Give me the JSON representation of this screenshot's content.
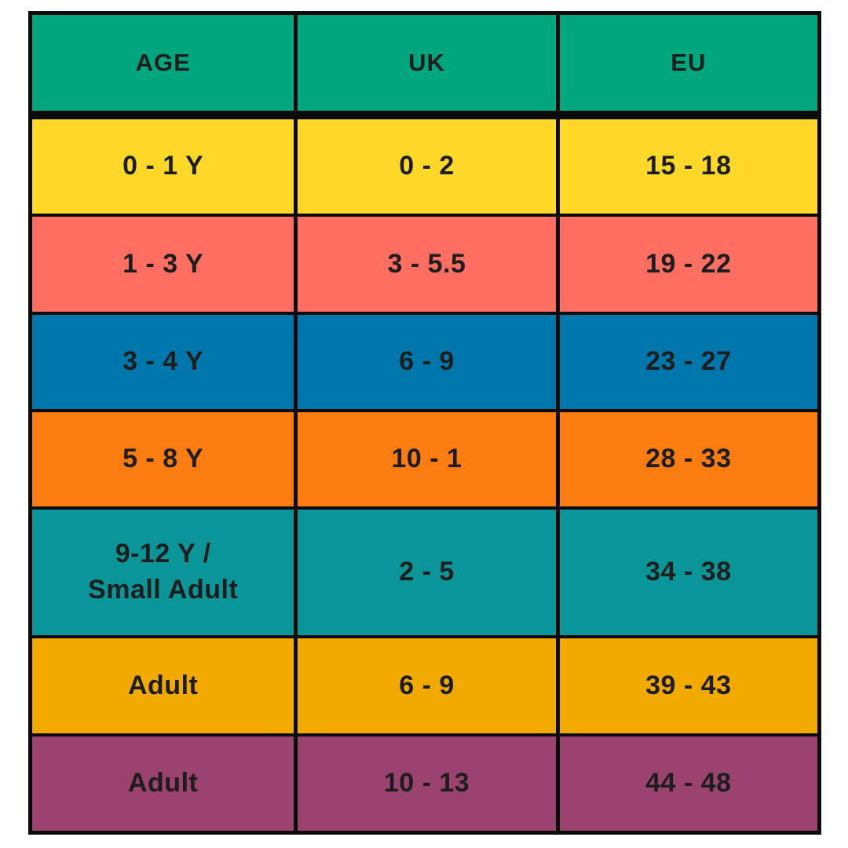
{
  "table": {
    "title": "shoe-size-conversion-chart",
    "colors": {
      "header_bg": "#00A77E",
      "border": "#0B0B0B",
      "text": "#1D1D1D"
    },
    "columns": [
      {
        "key": "age",
        "label": "AGE"
      },
      {
        "key": "uk",
        "label": "UK"
      },
      {
        "key": "eu",
        "label": "EU"
      }
    ],
    "rows": [
      {
        "age": "0 - 1 Y",
        "uk": "0 - 2",
        "eu": "15 - 18",
        "color": "#FFD829",
        "tall": false
      },
      {
        "age": "1 - 3 Y",
        "uk": "3 - 5.5",
        "eu": "19 - 22",
        "color": "#FF6F61",
        "tall": false
      },
      {
        "age": "3 - 4 Y",
        "uk": "6 - 9",
        "eu": "23 - 27",
        "color": "#0077AC",
        "tall": false
      },
      {
        "age": "5 - 8 Y",
        "uk": "10 - 1",
        "eu": "28 - 33",
        "color": "#FB7D12",
        "tall": false
      },
      {
        "age": "9-12 Y /\nSmall Adult",
        "uk": "2 - 5",
        "eu": "34 - 38",
        "color": "#0A9599",
        "tall": true
      },
      {
        "age": "Adult",
        "uk": "6 - 9",
        "eu": "39 - 43",
        "color": "#F2A900",
        "tall": false
      },
      {
        "age": "Adult",
        "uk": "10 - 13",
        "eu": "44 - 48",
        "color": "#9B436F",
        "tall": false
      }
    ]
  }
}
